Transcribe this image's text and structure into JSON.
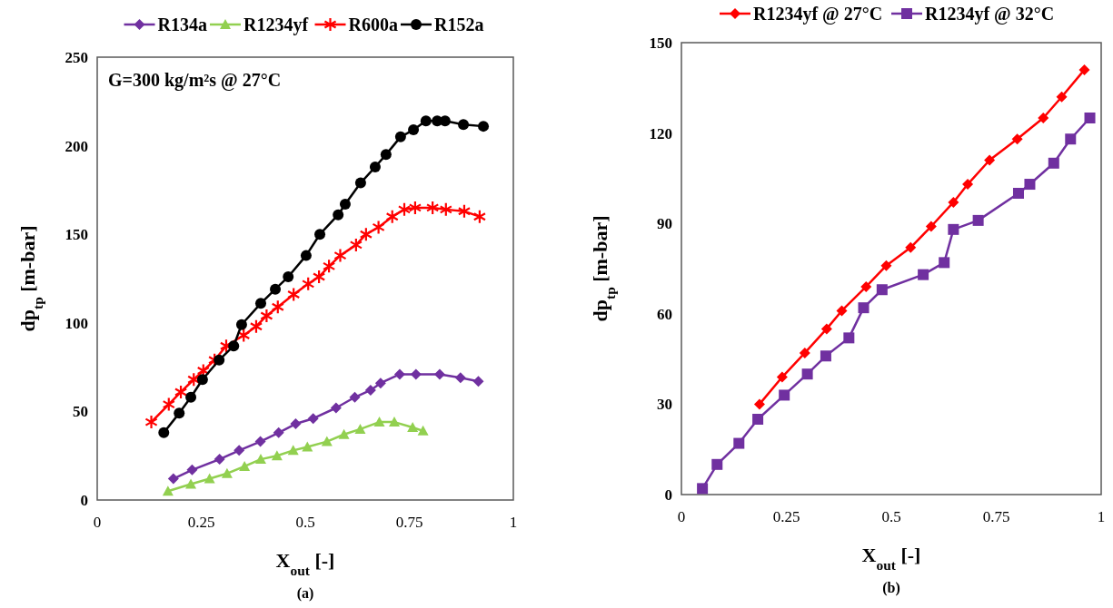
{
  "chart_data": [
    {
      "type": "line",
      "xlabel": "X$_{out}$ [-]",
      "ylabel": "dp$_{tp}$   [m-bar]",
      "xlim": [
        0,
        1
      ],
      "xticks": [
        0,
        0.25,
        0.5,
        0.75,
        1
      ],
      "ylim": [
        0,
        250
      ],
      "yticks": [
        0,
        50,
        100,
        150,
        200,
        250
      ],
      "grid": false,
      "legend": "top",
      "line_style": "solid",
      "annotations": [
        "G=300 kg/m²s @ 27°C",
        "(a)"
      ],
      "series": [
        {
          "name": "R134a",
          "color": "#7030a0",
          "marker": "diamond",
          "x": [
            0.183,
            0.228,
            0.294,
            0.341,
            0.392,
            0.436,
            0.477,
            0.519,
            0.574,
            0.619,
            0.657,
            0.681,
            0.727,
            0.766,
            0.823,
            0.873,
            0.916
          ],
          "values": [
            12,
            17,
            23,
            28,
            33,
            38,
            43,
            46,
            52,
            58,
            62,
            66,
            71,
            71,
            71,
            69,
            67
          ]
        },
        {
          "name": "R1234yf",
          "color": "#92d050",
          "marker": "triangle",
          "x": [
            0.17,
            0.225,
            0.27,
            0.312,
            0.354,
            0.393,
            0.432,
            0.471,
            0.505,
            0.552,
            0.593,
            0.632,
            0.678,
            0.714,
            0.758,
            0.783
          ],
          "values": [
            5,
            9,
            12,
            15,
            19,
            23,
            25,
            28,
            30,
            33,
            37,
            40,
            44,
            44,
            41,
            39
          ]
        },
        {
          "name": "R600a",
          "color": "#ff0000",
          "marker": "cross",
          "x": [
            0.13,
            0.172,
            0.201,
            0.232,
            0.255,
            0.282,
            0.31,
            0.352,
            0.382,
            0.407,
            0.434,
            0.472,
            0.507,
            0.533,
            0.557,
            0.584,
            0.622,
            0.646,
            0.676,
            0.709,
            0.738,
            0.764,
            0.806,
            0.838,
            0.882,
            0.919
          ],
          "values": [
            44,
            54,
            61,
            68,
            73,
            79,
            87,
            93,
            98,
            104,
            109,
            116,
            122,
            126,
            132,
            138,
            144,
            150,
            154,
            160,
            164,
            165,
            165,
            164,
            163,
            160
          ]
        },
        {
          "name": "R152a",
          "color": "#000000",
          "marker": "circle",
          "x": [
            0.16,
            0.197,
            0.225,
            0.253,
            0.293,
            0.328,
            0.347,
            0.393,
            0.428,
            0.459,
            0.502,
            0.535,
            0.579,
            0.596,
            0.633,
            0.668,
            0.694,
            0.729,
            0.76,
            0.79,
            0.817,
            0.836,
            0.88,
            0.928
          ],
          "values": [
            38,
            49,
            58,
            68,
            79,
            87,
            99,
            111,
            119,
            126,
            138,
            150,
            161,
            167,
            179,
            188,
            195,
            205,
            209,
            214,
            214,
            214,
            212,
            211
          ]
        }
      ]
    },
    {
      "type": "line",
      "xlabel": "X$_{out}$ [-]",
      "ylabel": "dp$_{tp}$   [m-bar]",
      "xlim": [
        0,
        1
      ],
      "xticks": [
        0,
        0.25,
        0.5,
        0.75,
        1
      ],
      "ylim": [
        0,
        150
      ],
      "yticks": [
        0,
        30,
        60,
        90,
        120,
        150
      ],
      "grid": false,
      "legend": "top",
      "line_style": "solid",
      "annotations": [
        "(b)"
      ],
      "series": [
        {
          "name": "R1234yf @ 27°C",
          "color": "#ff0000",
          "marker": "diamond",
          "x": [
            0.186,
            0.24,
            0.294,
            0.346,
            0.382,
            0.44,
            0.488,
            0.546,
            0.595,
            0.648,
            0.682,
            0.734,
            0.8,
            0.862,
            0.906,
            0.96
          ],
          "values": [
            30,
            39,
            47,
            55,
            61,
            69,
            76,
            82,
            89,
            97,
            103,
            111,
            118,
            125,
            132,
            141
          ]
        },
        {
          "name": "R1234yf @ 32°C",
          "color": "#7030a0",
          "marker": "square",
          "x": [
            0.05,
            0.085,
            0.137,
            0.182,
            0.245,
            0.3,
            0.344,
            0.399,
            0.434,
            0.478,
            0.576,
            0.626,
            0.648,
            0.707,
            0.803,
            0.83,
            0.887,
            0.927,
            0.973
          ],
          "values": [
            2,
            10,
            17,
            25,
            33,
            40,
            46,
            52,
            62,
            68,
            73,
            77,
            88,
            91,
            100,
            103,
            110,
            118,
            125
          ]
        }
      ]
    }
  ]
}
